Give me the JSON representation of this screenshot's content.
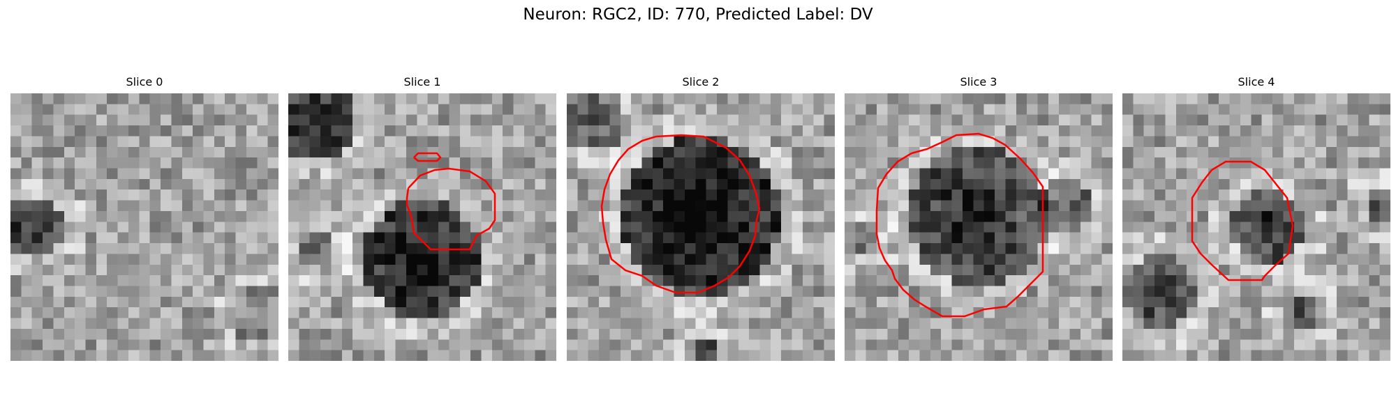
{
  "figure": {
    "title": "Neuron: RGC2, ID: 770, Predicted Label: DV"
  },
  "panels": [
    {
      "title": "Slice 0",
      "cell": "none"
    },
    {
      "title": "Slice 1",
      "cell": "dark round soma, lower center, with small bright fleck above"
    },
    {
      "title": "Slice 2",
      "cell": "large dark round soma filling center"
    },
    {
      "title": "Slice 3",
      "cell": "dark round soma, center"
    },
    {
      "title": "Slice 4",
      "cell": "small dark soma, center-right"
    }
  ],
  "contour_color": "#ff0000",
  "image_style": "grayscale 25x25 pixel patch with red segmentation outline"
}
